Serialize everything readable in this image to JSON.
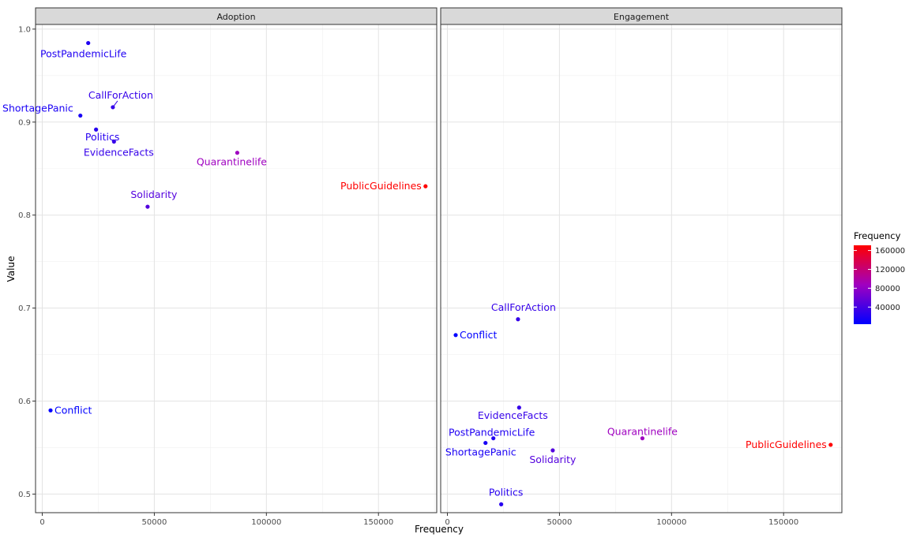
{
  "chart_data": {
    "type": "scatter",
    "x_label": "Frequency",
    "y_label": "Value",
    "xlim": [
      -3000,
      176000
    ],
    "ylim": [
      0.48,
      1.005
    ],
    "x_ticks": [
      0,
      50000,
      100000,
      150000
    ],
    "x_tick_labels": [
      "0",
      "50000",
      "100000",
      "150000"
    ],
    "y_ticks": [
      0.5,
      0.6,
      0.7,
      0.8,
      0.9,
      1.0
    ],
    "y_tick_labels": [
      "0.5",
      "0.6",
      "0.7",
      "0.8",
      "0.9",
      "1.0"
    ],
    "grid": true,
    "legend": {
      "title": "Frequency",
      "placement": "right",
      "type": "colorbar",
      "range": [
        3700,
        171000
      ],
      "ticks": [
        40000,
        80000,
        120000,
        160000
      ],
      "tick_labels": [
        "40000",
        "80000",
        "120000",
        "160000"
      ],
      "colors": [
        "#0000ff",
        "#ff0000"
      ]
    },
    "facets": [
      {
        "name": "Adoption",
        "points": [
          {
            "label": "PostPandemicLife",
            "x": 20500,
            "y": 0.985
          },
          {
            "label": "CallForAction",
            "x": 31500,
            "y": 0.916
          },
          {
            "label": "ShortagePanic",
            "x": 17000,
            "y": 0.907
          },
          {
            "label": "Politics",
            "x": 24000,
            "y": 0.892
          },
          {
            "label": "EvidenceFacts",
            "x": 32000,
            "y": 0.879
          },
          {
            "label": "Quarantinelife",
            "x": 87000,
            "y": 0.867
          },
          {
            "label": "PublicGuidelines",
            "x": 171000,
            "y": 0.831
          },
          {
            "label": "Solidarity",
            "x": 47000,
            "y": 0.809
          },
          {
            "label": "Conflict",
            "x": 3700,
            "y": 0.59
          }
        ]
      },
      {
        "name": "Engagement",
        "points": [
          {
            "label": "CallForAction",
            "x": 31500,
            "y": 0.688
          },
          {
            "label": "Conflict",
            "x": 3700,
            "y": 0.671
          },
          {
            "label": "EvidenceFacts",
            "x": 32000,
            "y": 0.593
          },
          {
            "label": "PostPandemicLife",
            "x": 20500,
            "y": 0.56
          },
          {
            "label": "Quarantinelife",
            "x": 87000,
            "y": 0.56
          },
          {
            "label": "ShortagePanic",
            "x": 17000,
            "y": 0.555
          },
          {
            "label": "PublicGuidelines",
            "x": 171000,
            "y": 0.553
          },
          {
            "label": "Solidarity",
            "x": 47000,
            "y": 0.547
          },
          {
            "label": "Politics",
            "x": 24000,
            "y": 0.489
          }
        ]
      }
    ]
  }
}
